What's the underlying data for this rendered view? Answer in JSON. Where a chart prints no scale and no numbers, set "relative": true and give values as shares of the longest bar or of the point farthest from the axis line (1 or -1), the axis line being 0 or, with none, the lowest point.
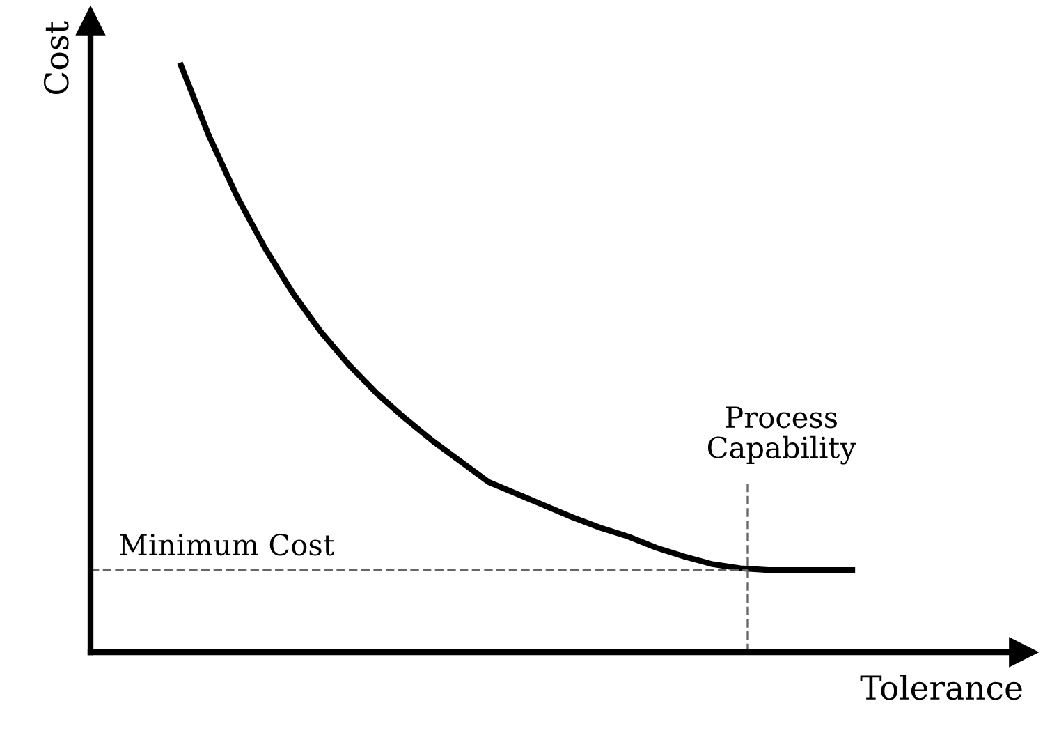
{
  "chart_data": {
    "type": "line",
    "relative": true,
    "xlabel": "Tolerance",
    "ylabel": "Cost",
    "categories": [
      null,
      null,
      null,
      null,
      null,
      null,
      null,
      null,
      null,
      null,
      null,
      null,
      null,
      null,
      null,
      null,
      null,
      null,
      null,
      null,
      null,
      null,
      null,
      null,
      null
    ],
    "series": [
      {
        "color": "#000000",
        "values": [
          1.0,
          0.88,
          0.777,
          0.689,
          0.612,
          0.546,
          0.49,
          0.441,
          0.399,
          0.36,
          0.325,
          0.29,
          0.27,
          0.25,
          0.23,
          0.212,
          0.197,
          0.178,
          0.163,
          0.15,
          0.143,
          0.14,
          0.14,
          0.14,
          0.14
        ]
      }
    ],
    "ref_lines": [
      {
        "axis": "y",
        "value": 0.14,
        "label": "Minimum Cost",
        "line_style": "dashed",
        "color": "#666666"
      }
    ],
    "annotations": [
      "Process Capability"
    ],
    "grid": false,
    "marker": "none",
    "line_style": "solid"
  }
}
